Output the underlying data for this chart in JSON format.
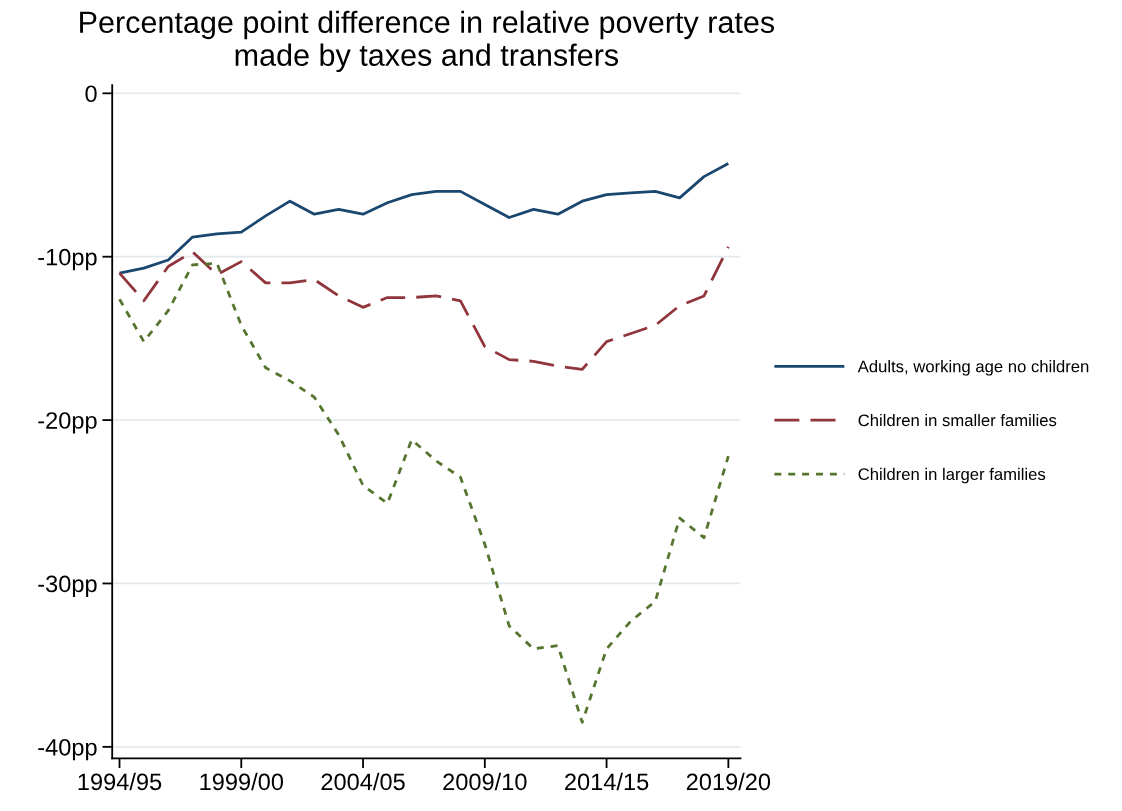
{
  "chart_data": {
    "type": "line",
    "title": "Percentage point difference in relative poverty rates\nmade by taxes and transfers",
    "categories": [
      "1994/95",
      null,
      null,
      null,
      null,
      "1999/00",
      null,
      null,
      null,
      null,
      "2004/05",
      null,
      null,
      null,
      null,
      "2009/10",
      null,
      null,
      null,
      null,
      "2014/15",
      null,
      null,
      null,
      null,
      "2019/20"
    ],
    "series": [
      {
        "name": "Adults, working age no children",
        "color": "#1a476f",
        "line_style": "solid",
        "values": [
          -11.0,
          -10.7,
          -10.2,
          -8.8,
          -8.6,
          -8.5,
          -7.5,
          -6.6,
          -7.4,
          -7.1,
          -7.4,
          -6.7,
          -6.2,
          -6.0,
          -6.0,
          -6.8,
          -7.6,
          -7.1,
          -7.4,
          -6.6,
          -6.2,
          -6.1,
          -6.0,
          -6.4,
          -5.1,
          -4.3
        ]
      },
      {
        "name": "Children in smaller families",
        "color": "#90353b",
        "line_style": "dashed",
        "values": [
          -11.0,
          -12.7,
          -10.6,
          -9.7,
          -11.1,
          -10.3,
          -11.6,
          -11.6,
          -11.4,
          -12.4,
          -13.1,
          -12.5,
          -12.5,
          -12.4,
          -12.7,
          -15.5,
          -16.3,
          -16.4,
          -16.7,
          -16.9,
          -15.2,
          -14.7,
          -14.2,
          -13.0,
          -12.4,
          -9.4
        ]
      },
      {
        "name": "Children in larger families",
        "color": "#55752f",
        "line_style": "dotted",
        "values": [
          -12.6,
          -15.2,
          -13.3,
          -10.5,
          -10.4,
          -14.2,
          -16.8,
          -17.6,
          -18.6,
          -20.9,
          -24.0,
          -25.1,
          -21.2,
          -22.5,
          -23.5,
          -27.6,
          -32.6,
          -34.0,
          -33.8,
          -38.5,
          -34.0,
          -32.3,
          -31.1,
          -26.0,
          -27.2,
          -22.2
        ]
      }
    ],
    "ylim": [
      -40.7,
      0.5
    ],
    "yticks": [
      {
        "value": 0,
        "label": "0"
      },
      {
        "value": -10,
        "label": "-10pp"
      },
      {
        "value": -20,
        "label": "-20pp"
      },
      {
        "value": -30,
        "label": "-30pp"
      },
      {
        "value": -40,
        "label": "-40pp"
      }
    ],
    "grid": "y",
    "legend": "right",
    "marker": "none"
  }
}
